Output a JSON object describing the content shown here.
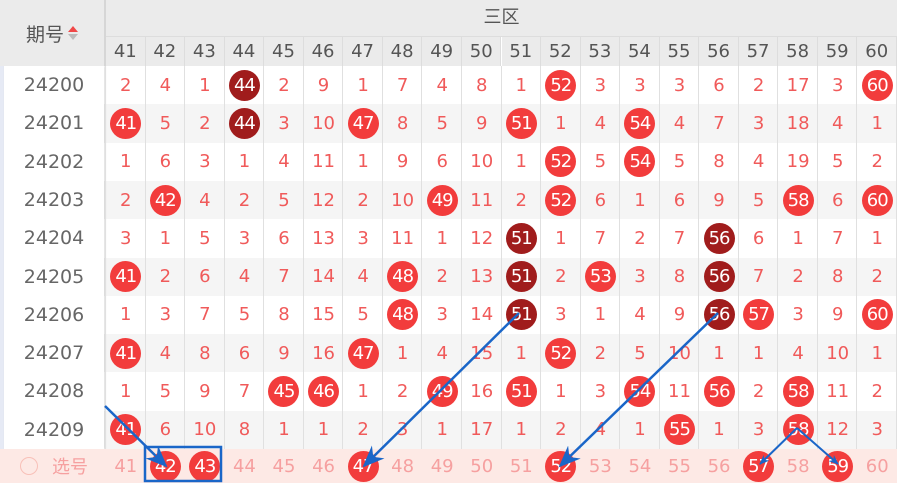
{
  "header": {
    "period_label": "期号",
    "zone_label": "三区",
    "sort_icon": "sort-asc-icon"
  },
  "columns": [
    "41",
    "42",
    "43",
    "44",
    "45",
    "46",
    "47",
    "48",
    "49",
    "50",
    "51",
    "52",
    "53",
    "54",
    "55",
    "56",
    "57",
    "58",
    "59",
    "60"
  ],
  "colors": {
    "hit": "#f23c3c",
    "repeat_hit": "#a01c1c",
    "miss_text": "#f05a5a",
    "annotation": "#1a66c8",
    "select_row_bg": "#fde9e5"
  },
  "rows": [
    {
      "period": "24200",
      "values": [
        "2",
        "4",
        "1",
        "44",
        "2",
        "9",
        "1",
        "7",
        "4",
        "8",
        "1",
        "52",
        "3",
        "3",
        "3",
        "6",
        "2",
        "17",
        "3",
        "60"
      ],
      "dark": [
        "44"
      ]
    },
    {
      "period": "24201",
      "values": [
        "41",
        "5",
        "2",
        "44",
        "3",
        "10",
        "47",
        "8",
        "5",
        "9",
        "51",
        "1",
        "4",
        "54",
        "4",
        "7",
        "3",
        "18",
        "4",
        "1"
      ],
      "dark": [
        "44"
      ]
    },
    {
      "period": "24202",
      "values": [
        "1",
        "6",
        "3",
        "1",
        "4",
        "11",
        "1",
        "9",
        "6",
        "10",
        "1",
        "52",
        "5",
        "54",
        "5",
        "8",
        "4",
        "19",
        "5",
        "2"
      ],
      "dark": []
    },
    {
      "period": "24203",
      "values": [
        "2",
        "42",
        "4",
        "2",
        "5",
        "12",
        "2",
        "10",
        "49",
        "11",
        "2",
        "52",
        "6",
        "1",
        "6",
        "9",
        "5",
        "58",
        "6",
        "60"
      ],
      "dark": []
    },
    {
      "period": "24204",
      "values": [
        "3",
        "1",
        "5",
        "3",
        "6",
        "13",
        "3",
        "11",
        "1",
        "12",
        "51",
        "1",
        "7",
        "2",
        "7",
        "56",
        "6",
        "1",
        "7",
        "1"
      ],
      "dark": [
        "51",
        "56"
      ]
    },
    {
      "period": "24205",
      "values": [
        "41",
        "2",
        "6",
        "4",
        "7",
        "14",
        "4",
        "48",
        "2",
        "13",
        "51",
        "2",
        "53",
        "3",
        "8",
        "56",
        "7",
        "2",
        "8",
        "2"
      ],
      "dark": [
        "51",
        "56"
      ]
    },
    {
      "period": "24206",
      "values": [
        "1",
        "3",
        "7",
        "5",
        "8",
        "15",
        "5",
        "48",
        "3",
        "14",
        "51",
        "3",
        "1",
        "4",
        "9",
        "56",
        "57",
        "3",
        "9",
        "60"
      ],
      "dark": [
        "51",
        "56"
      ]
    },
    {
      "period": "24207",
      "values": [
        "41",
        "4",
        "8",
        "6",
        "9",
        "16",
        "47",
        "1",
        "4",
        "15",
        "1",
        "52",
        "2",
        "5",
        "10",
        "1",
        "1",
        "4",
        "10",
        "1"
      ],
      "dark": []
    },
    {
      "period": "24208",
      "values": [
        "1",
        "5",
        "9",
        "7",
        "45",
        "46",
        "1",
        "2",
        "49",
        "16",
        "51",
        "1",
        "3",
        "54",
        "11",
        "56",
        "2",
        "58",
        "11",
        "2"
      ],
      "dark": []
    },
    {
      "period": "24209",
      "values": [
        "41",
        "6",
        "10",
        "8",
        "1",
        "1",
        "2",
        "3",
        "1",
        "17",
        "1",
        "2",
        "4",
        "1",
        "55",
        "1",
        "3",
        "58",
        "12",
        "3"
      ],
      "dark": []
    }
  ],
  "select_row": {
    "label": "选号",
    "selected": [
      "42",
      "43",
      "47",
      "52",
      "57",
      "59"
    ]
  }
}
